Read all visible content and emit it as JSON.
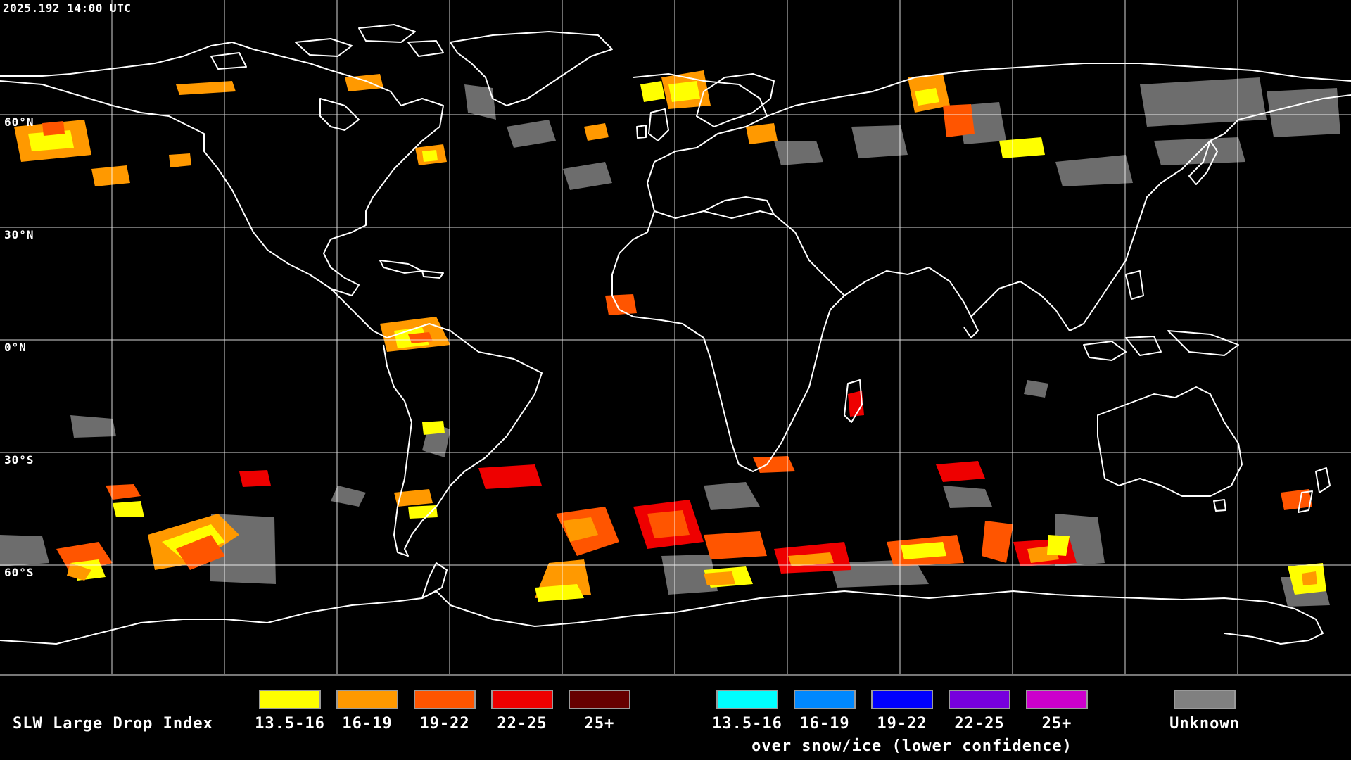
{
  "timestamp": "2025.192 14:00 UTC",
  "latitude_labels": [
    "60°N",
    "30°N",
    "0°N",
    "30°S",
    "60°S"
  ],
  "legend": {
    "title": "SLW Large Drop Index",
    "liquid": [
      {
        "label": "13.5-16",
        "color": "#ffff00"
      },
      {
        "label": "16-19",
        "color": "#ff9900"
      },
      {
        "label": "19-22",
        "color": "#ff5500"
      },
      {
        "label": "22-25",
        "color": "#ee0000"
      },
      {
        "label": "25+",
        "color": "#660000"
      }
    ],
    "snow_ice": [
      {
        "label": "13.5-16",
        "color": "#00ffff"
      },
      {
        "label": "16-19",
        "color": "#0088ff"
      },
      {
        "label": "19-22",
        "color": "#0000ff"
      },
      {
        "label": "22-25",
        "color": "#7700dd"
      },
      {
        "label": "25+",
        "color": "#cc00cc"
      }
    ],
    "snow_ice_note": "over snow/ice (lower confidence)",
    "unknown": {
      "label": "Unknown",
      "color": "#808080"
    }
  },
  "map": {
    "projection": "equirectangular",
    "grid_spacing_degrees": 30,
    "coastline_color": "#ffffff",
    "gridline_color": "#ffffff",
    "background_color": "#000000"
  }
}
